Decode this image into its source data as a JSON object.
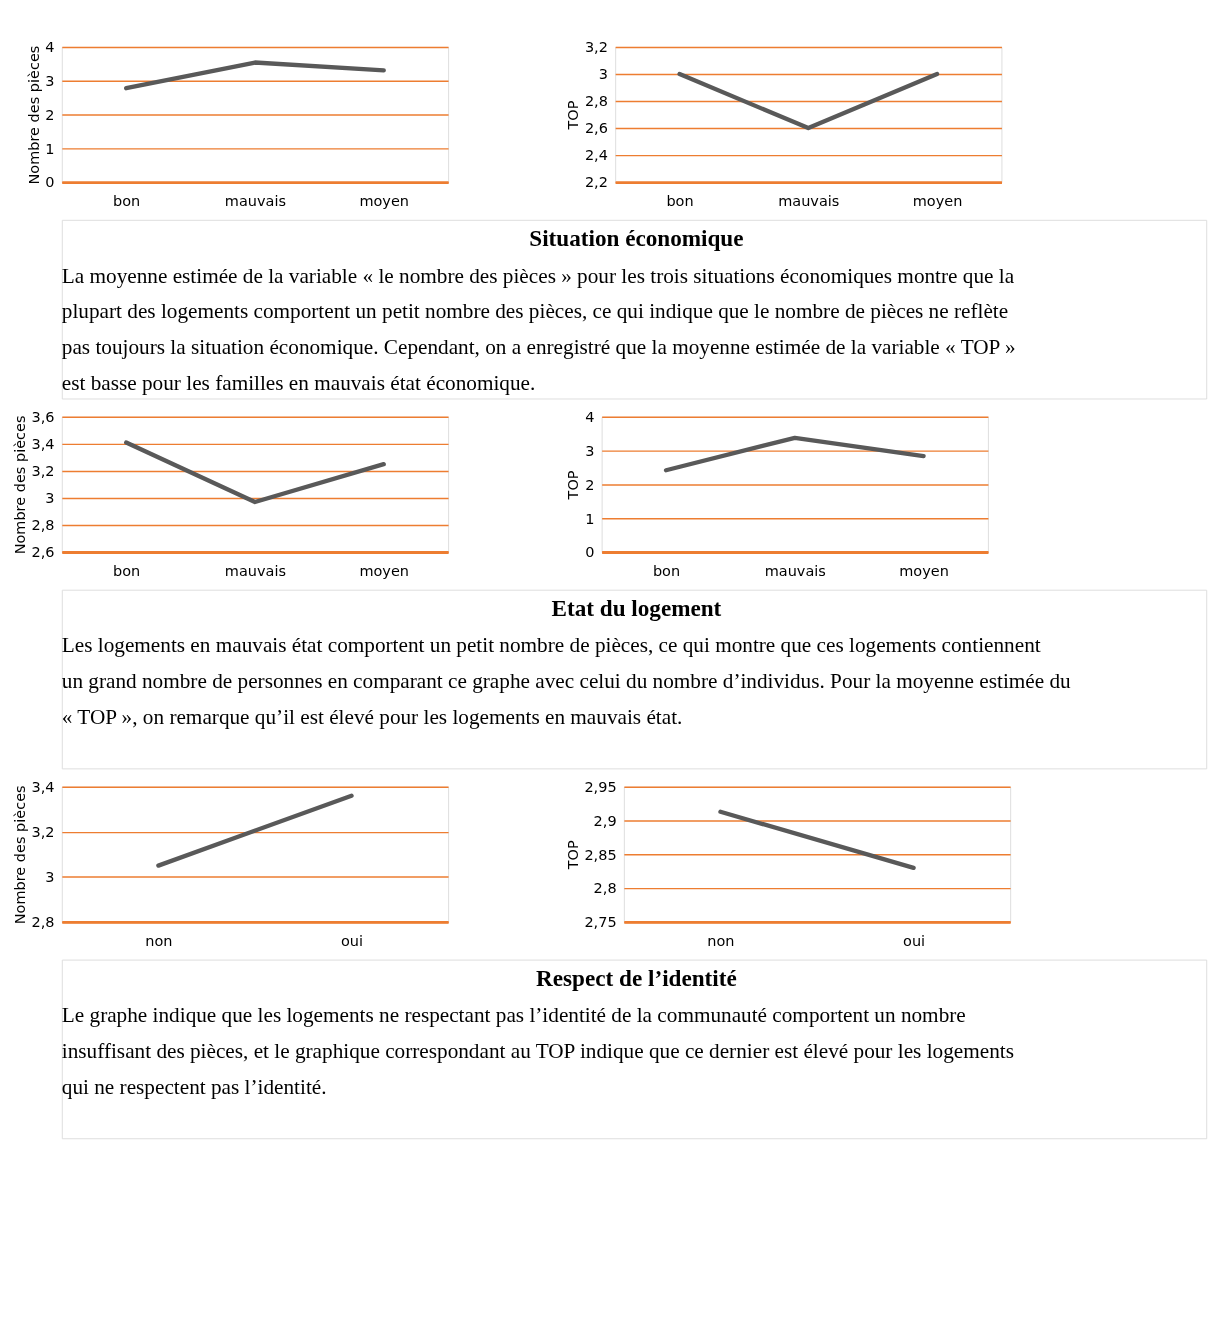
{
  "chart_data": [
    {
      "type": "line",
      "ylabel": "Nombre des pièces",
      "categories": [
        "bon",
        "mauvais",
        "moyen"
      ],
      "values": [
        2.78,
        3.54,
        3.31
      ],
      "color": "#595959",
      "ylim": [
        0,
        4
      ],
      "yticks": [
        0,
        1,
        2,
        3,
        4
      ],
      "grid": "y",
      "annotations": [
        "Situation économique",
        "La moyenne estimée de la variable « le nombre des pièces » pour les trois situations économiques montre que la plupart des logements comportent un petit nombre des pièces, ce qui indique que le nombre de pièces ne reflète pas toujours la situation économique.  Cependant, on a enregistré que la moyenne estimée de la variable « TOP » est basse pour les familles en mauvais état économique."
      ]
    },
    {
      "type": "line",
      "ylabel": "TOP",
      "categories": [
        "bon",
        "mauvais",
        "moyen"
      ],
      "values": [
        3.0,
        2.6,
        3.0
      ],
      "color": "#595959",
      "ylim": [
        2.2,
        3.2
      ],
      "yticks": [
        {
          "value": 2.2,
          "label": "2,2"
        },
        {
          "value": 2.4,
          "label": "2,4"
        },
        {
          "value": 2.6,
          "label": "2,6"
        },
        {
          "value": 2.8,
          "label": "2,8"
        },
        3,
        {
          "value": 3.2,
          "label": "3,2"
        }
      ],
      "grid": "y"
    },
    {
      "type": "line",
      "ylabel": "Nombre des pièces",
      "categories": [
        "bon",
        "mauvais",
        "moyen"
      ],
      "values": [
        3.41,
        2.97,
        3.25
      ],
      "color": "#595959",
      "ylim": [
        2.6,
        3.6
      ],
      "yticks": [
        {
          "value": 2.6,
          "label": "2,6"
        },
        {
          "value": 2.8,
          "label": "2,8"
        },
        3,
        {
          "value": 3.2,
          "label": "3,2"
        },
        {
          "value": 3.4,
          "label": "3,4"
        },
        {
          "value": 3.6,
          "label": "3,6"
        }
      ],
      "grid": "y",
      "annotations": [
        "Etat du logement",
        "Les logements en mauvais état comportent un petit nombre de pièces, ce qui montre que ces logements contiennent un grand nombre de personnes en comparant ce graphe avec celui du nombre d’individus. Pour la moyenne estimée du « TOP », on remarque qu’il est élevé pour les logements en mauvais état."
      ]
    },
    {
      "type": "line",
      "ylabel": "TOP",
      "categories": [
        "bon",
        "mauvais",
        "moyen"
      ],
      "values": [
        2.42,
        3.38,
        2.84
      ],
      "color": "#595959",
      "ylim": [
        0,
        4
      ],
      "yticks": [
        0,
        1,
        2,
        3,
        4
      ],
      "grid": "y"
    },
    {
      "type": "line",
      "ylabel": "Nombre des pièces",
      "categories": [
        "non",
        "oui"
      ],
      "values": [
        3.05,
        3.36
      ],
      "color": "#595959",
      "ylim": [
        2.8,
        3.4
      ],
      "yticks": [
        {
          "value": 2.8,
          "label": "2,8"
        },
        3,
        {
          "value": 3.2,
          "label": "3,2"
        },
        {
          "value": 3.4,
          "label": "3,4"
        }
      ],
      "grid": "y",
      "annotations": [
        "Respect de l’identité",
        "Le graphe indique que les logements ne respectant pas l’identité de la communauté comportent un nombre insuffisant des pièces, et le graphique correspondant au TOP indique que ce dernier est élevé pour les logements qui ne respectent pas l’identité."
      ]
    },
    {
      "type": "line",
      "ylabel": "TOP",
      "categories": [
        "non",
        "oui"
      ],
      "values": [
        2.913,
        2.83
      ],
      "color": "#595959",
      "ylim": [
        2.75,
        2.95
      ],
      "yticks": [
        {
          "value": 2.75,
          "label": "2,75"
        },
        {
          "value": 2.8,
          "label": "2,8"
        },
        {
          "value": 2.85,
          "label": "2,85"
        },
        {
          "value": 2.9,
          "label": "2,9"
        },
        {
          "value": 2.95,
          "label": "2,95"
        }
      ],
      "grid": "y"
    }
  ]
}
